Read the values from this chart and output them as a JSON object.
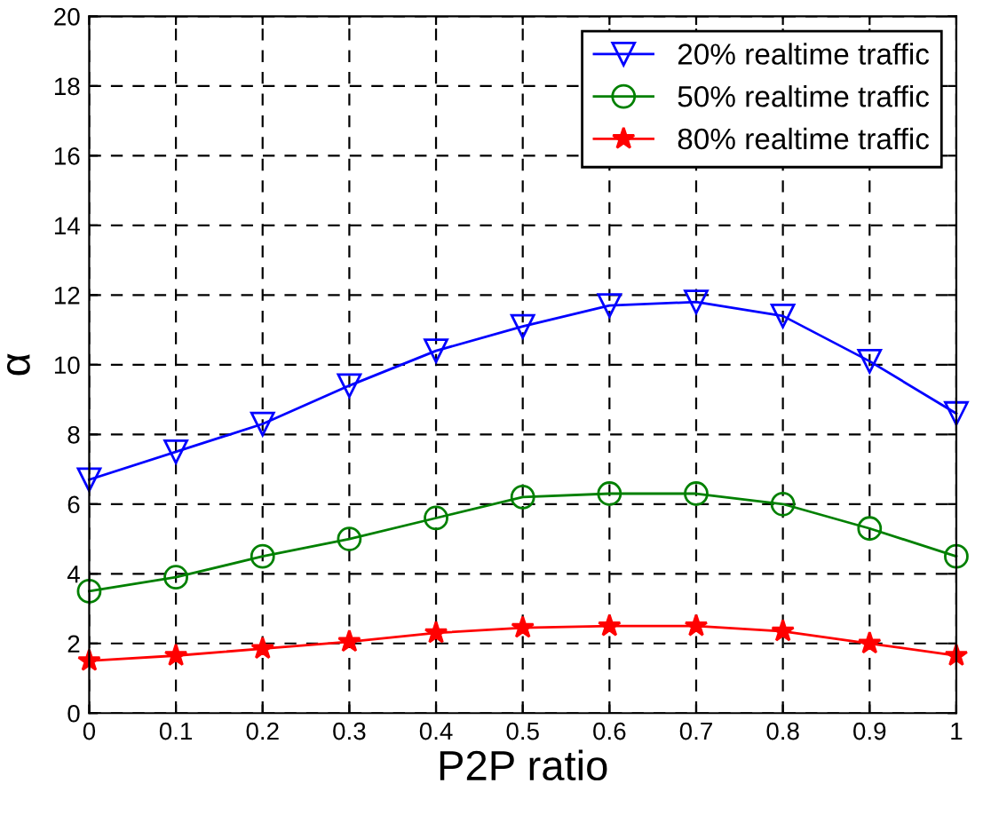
{
  "chart_data": {
    "type": "line",
    "xlabel": "P2P ratio",
    "ylabel": "α",
    "x": [
      0,
      0.1,
      0.2,
      0.3,
      0.4,
      0.5,
      0.6,
      0.7,
      0.8,
      0.9,
      1
    ],
    "series": [
      {
        "name": "20% realtime traffic",
        "color": "#0000ff",
        "marker": "triangle_down",
        "values": [
          6.7,
          7.5,
          8.3,
          9.4,
          10.4,
          11.1,
          11.7,
          11.8,
          11.4,
          10.1,
          8.6
        ]
      },
      {
        "name": "50% realtime traffic",
        "color": "#008000",
        "marker": "circle",
        "values": [
          3.5,
          3.9,
          4.5,
          5.0,
          5.6,
          6.2,
          6.3,
          6.3,
          6.0,
          5.3,
          4.5
        ]
      },
      {
        "name": "80% realtime traffic",
        "color": "#ff0000",
        "marker": "star",
        "values": [
          1.5,
          1.65,
          1.85,
          2.05,
          2.3,
          2.45,
          2.5,
          2.5,
          2.35,
          2.0,
          1.65
        ]
      }
    ],
    "xlim": [
      0,
      1
    ],
    "xticks": [
      0,
      0.1,
      0.2,
      0.3,
      0.4,
      0.5,
      0.6,
      0.7,
      0.8,
      0.9,
      1
    ],
    "ylim": [
      0,
      20
    ],
    "yticks": [
      0,
      2,
      4,
      6,
      8,
      10,
      12,
      14,
      16,
      18,
      20
    ],
    "grid": true,
    "legend": "top right",
    "line_style": "solid"
  }
}
